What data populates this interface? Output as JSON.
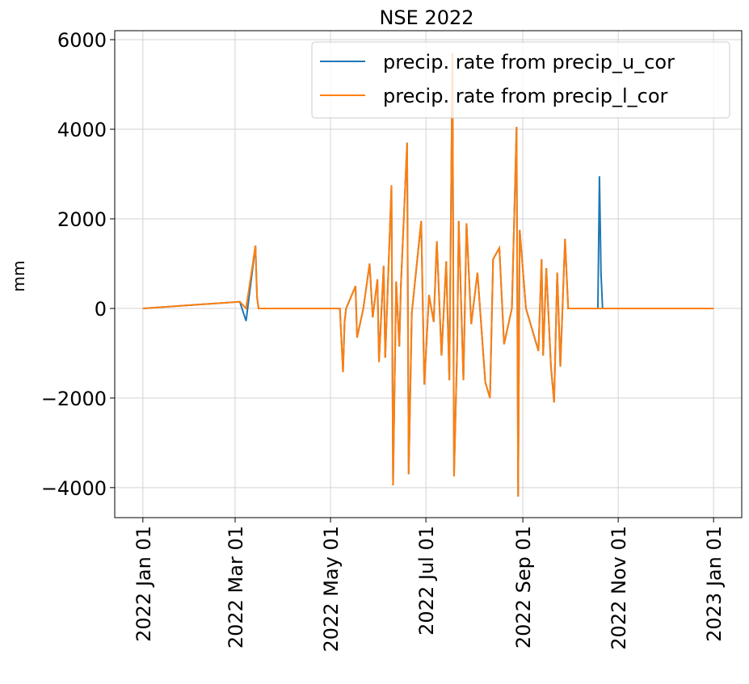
{
  "chart_data": {
    "type": "line",
    "title": "NSE 2022",
    "y_label": "mm",
    "x": [
      "2022-01-01",
      "2022-03-04",
      "2022-03-08",
      "2022-03-14",
      "2022-03-15",
      "2022-03-16",
      "2022-05-07",
      "2022-05-09",
      "2022-05-10",
      "2022-05-11",
      "2022-05-17",
      "2022-05-18",
      "2022-05-22",
      "2022-05-26",
      "2022-05-28",
      "2022-05-31",
      "2022-06-01",
      "2022-06-04",
      "2022-06-05",
      "2022-06-09",
      "2022-06-10",
      "2022-06-12",
      "2022-06-14",
      "2022-06-15",
      "2022-06-19",
      "2022-06-20",
      "2022-06-22",
      "2022-06-28",
      "2022-06-30",
      "2022-07-03",
      "2022-07-06",
      "2022-07-08",
      "2022-07-11",
      "2022-07-14",
      "2022-07-16",
      "2022-07-18",
      "2022-07-19",
      "2022-07-21",
      "2022-07-22",
      "2022-07-25",
      "2022-07-27",
      "2022-07-30",
      "2022-08-03",
      "2022-08-08",
      "2022-08-11",
      "2022-08-13",
      "2022-08-17",
      "2022-08-20",
      "2022-08-25",
      "2022-08-28",
      "2022-08-29",
      "2022-08-30",
      "2022-09-03",
      "2022-09-11",
      "2022-09-13",
      "2022-09-14",
      "2022-09-16",
      "2022-09-19",
      "2022-09-21",
      "2022-09-23",
      "2022-09-25",
      "2022-09-28",
      "2022-09-30",
      "2022-10-19",
      "2022-10-20",
      "2022-10-21",
      "2022-10-22",
      "2023-01-01"
    ],
    "series": [
      {
        "name": "precip. rate from precip_u_cor",
        "color": "#1f77b4",
        "values": [
          0,
          150,
          -280,
          1400,
          250,
          0,
          0,
          -1420,
          -300,
          0,
          500,
          -650,
          0,
          1000,
          -200,
          650,
          -1200,
          950,
          -1100,
          2750,
          -3950,
          600,
          -850,
          500,
          3700,
          -3700,
          -100,
          1950,
          -1700,
          300,
          -300,
          1500,
          -1050,
          1050,
          -1600,
          5700,
          -3750,
          -900,
          1950,
          -1600,
          1900,
          -350,
          800,
          -1650,
          -2000,
          1100,
          1350,
          -800,
          0,
          4050,
          -4200,
          1750,
          0,
          -950,
          1100,
          -1050,
          900,
          -1300,
          -2100,
          800,
          -1300,
          1550,
          0,
          0,
          2950,
          780,
          0,
          0
        ]
      },
      {
        "name": "precip. rate from precip_l_cor",
        "color": "#ff7f0e",
        "values": [
          0,
          150,
          0,
          1400,
          250,
          0,
          0,
          -1420,
          -300,
          0,
          500,
          -650,
          0,
          1000,
          -200,
          650,
          -1200,
          950,
          -1100,
          2750,
          -3950,
          600,
          -850,
          500,
          3700,
          -3700,
          -100,
          1950,
          -1700,
          300,
          -300,
          1500,
          -1050,
          1050,
          -1600,
          5700,
          -3750,
          -900,
          1950,
          -1600,
          1900,
          -350,
          800,
          -1650,
          -2000,
          1100,
          1350,
          -800,
          0,
          4050,
          -4200,
          1750,
          0,
          -950,
          1100,
          -1050,
          900,
          -1300,
          -2100,
          800,
          -1300,
          1550,
          0,
          0,
          0,
          0,
          0,
          0
        ]
      }
    ],
    "xlim": [
      "2021-12-14",
      "2023-01-19"
    ],
    "xticks": [
      {
        "value": "2022-01-01",
        "label": "2022 Jan 01"
      },
      {
        "value": "2022-03-01",
        "label": "2022 Mar 01"
      },
      {
        "value": "2022-05-01",
        "label": "2022 May 01"
      },
      {
        "value": "2022-07-01",
        "label": "2022 Jul 01"
      },
      {
        "value": "2022-09-01",
        "label": "2022 Sep 01"
      },
      {
        "value": "2022-11-01",
        "label": "2022 Nov 01"
      },
      {
        "value": "2023-01-01",
        "label": "2023 Jan 01"
      }
    ],
    "ylim": [
      -4670,
      6200
    ],
    "yticks": [
      {
        "value": -4000,
        "label": "−4000"
      },
      {
        "value": -2000,
        "label": "−2000"
      },
      0,
      2000,
      4000,
      6000
    ],
    "grid": true,
    "legend": "upper right"
  }
}
